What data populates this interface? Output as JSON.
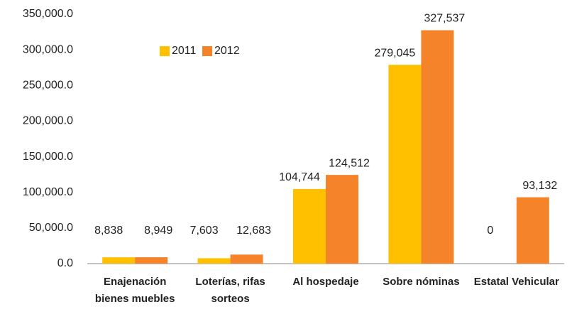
{
  "chart_data": {
    "type": "bar",
    "categories": [
      "Enajenación bienes muebles",
      "Loterías, rifas sorteos",
      "Al hospedaje",
      "Sobre nóminas",
      "Estatal Vehicular"
    ],
    "series": [
      {
        "name": "2011",
        "color": "#ffc000",
        "values": [
          8838,
          7603,
          104744,
          279045,
          0
        ],
        "value_labels": [
          "8,838",
          "7,603",
          "104,744",
          "279,045",
          "0"
        ]
      },
      {
        "name": "2012",
        "color": "#f5832a",
        "values": [
          8949,
          12683,
          124512,
          327537,
          93132
        ],
        "value_labels": [
          "8,949",
          "12,683",
          "124,512",
          "327,537",
          "93,132"
        ]
      }
    ],
    "ylim": [
      0,
      350000
    ],
    "yticks": [
      {
        "value": 0,
        "label": "0.0"
      },
      {
        "value": 50000,
        "label": "50,000.0"
      },
      {
        "value": 100000,
        "label": "100,000.0"
      },
      {
        "value": 150000,
        "label": "150,000.0"
      },
      {
        "value": 200000,
        "label": "200,000.0"
      },
      {
        "value": 250000,
        "label": "250,000.0"
      },
      {
        "value": 300000,
        "label": "300,000.0"
      },
      {
        "value": 350000,
        "label": "350,000.0"
      }
    ],
    "grid": false,
    "legend": "top"
  }
}
